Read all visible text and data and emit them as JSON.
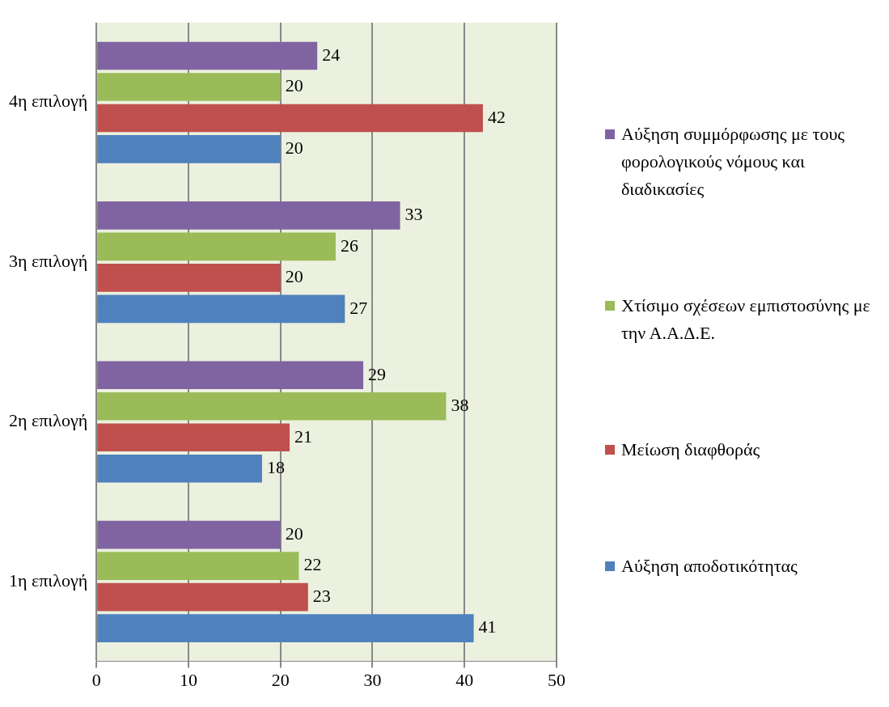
{
  "chart_data": {
    "type": "bar",
    "orientation": "horizontal",
    "categories": [
      "4η επιλογή",
      "3η επιλογή",
      "2η επιλογή",
      "1η επιλογή"
    ],
    "series": [
      {
        "name": "Αύξηση συμμόρφωσης με τους φορολογικούς νόμους και διαδικασίες",
        "color": "#8064a2",
        "values": [
          24,
          33,
          29,
          20
        ]
      },
      {
        "name": "Χτίσιμο σχέσεων εμπιστοσύνης με την Α.Α.Δ.Ε.",
        "color": "#9bbb59",
        "values": [
          20,
          26,
          38,
          22
        ]
      },
      {
        "name": "Μείωση διαφθοράς",
        "color": "#c0504d",
        "values": [
          42,
          20,
          21,
          23
        ]
      },
      {
        "name": "Αύξηση αποδοτικότητας",
        "color": "#4f81bd",
        "values": [
          20,
          27,
          18,
          41
        ]
      }
    ],
    "xlim": [
      0,
      50
    ],
    "xticks": [
      0,
      10,
      20,
      30,
      40,
      50
    ],
    "grid": "x",
    "legend": "right",
    "data_labels": true
  }
}
